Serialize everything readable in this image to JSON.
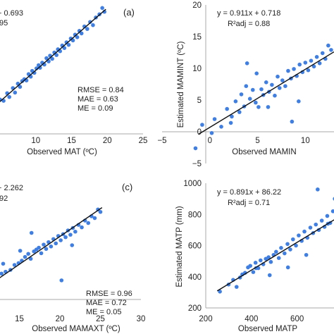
{
  "colors": {
    "points": "#3f7fe3",
    "line": "#111111",
    "axis": "#aaaaaa"
  },
  "chart_data": [
    {
      "type": "scatter",
      "panel_label": "(a)",
      "xlabel": "Observed MAT (ºC)",
      "ylabel": "",
      "xlim": [
        5,
        25
      ],
      "ylim": [
        null,
        null
      ],
      "x_ticks": [
        "10",
        "15",
        "20",
        "25"
      ],
      "y_ticks": [],
      "equation": "+ 0.693",
      "r2_label": ".95",
      "stats": [
        "RMSE = 0.84",
        "MAE = 0.63",
        "ME = 0.09"
      ],
      "fit": {
        "x": [
          4.8,
          19.8
        ],
        "y": [
          4.9,
          19.6
        ]
      },
      "points": {
        "x": [
          5.0,
          5.5,
          6.0,
          6.3,
          6.8,
          7.1,
          7.5,
          7.8,
          8.1,
          8.4,
          8.7,
          9.0,
          9.3,
          9.5,
          9.8,
          10.1,
          10.4,
          10.6,
          10.9,
          11.2,
          11.5,
          11.8,
          12.0,
          12.3,
          12.6,
          12.9,
          13.1,
          13.4,
          13.7,
          14.0,
          14.3,
          14.6,
          14.9,
          15.2,
          15.5,
          15.8,
          16.1,
          16.4,
          16.8,
          17.2,
          17.6,
          18.0,
          18.4,
          18.9,
          19.3,
          19.6
        ],
        "y": [
          5.4,
          5.2,
          6.4,
          5.8,
          7.2,
          6.5,
          7.9,
          7.4,
          8.3,
          8.6,
          8.4,
          9.4,
          9.0,
          9.9,
          9.6,
          10.3,
          10.8,
          10.4,
          11.2,
          10.9,
          11.9,
          11.4,
          12.3,
          11.8,
          12.8,
          12.4,
          13.3,
          13.0,
          13.9,
          13.5,
          14.4,
          14.0,
          15.0,
          14.7,
          15.6,
          15.2,
          16.2,
          15.8,
          16.9,
          16.5,
          17.6,
          17.1,
          18.3,
          18.8,
          19.8,
          19.2
        ]
      }
    },
    {
      "type": "scatter",
      "panel_label": "",
      "xlabel": "Observed MAMIN",
      "ylabel": "Estimated MAMINT (ºC)",
      "xlim": [
        -5,
        13
      ],
      "ylim": [
        -5,
        20
      ],
      "x_ticks": [
        "−5",
        "0",
        "5",
        "10"
      ],
      "y_ticks": [
        "20",
        "15",
        "10",
        "5",
        "0",
        "−5"
      ],
      "equation": "y = 0.911x + 0.718",
      "r2_label": "R²adj = 0.88",
      "stats": [],
      "fit": {
        "x": [
          -1.2,
          13
        ],
        "y": [
          -0.4,
          12.6
        ]
      },
      "points": {
        "x": [
          -1.5,
          -0.8,
          0.2,
          0.5,
          1.2,
          1.8,
          2.3,
          2.7,
          3.1,
          3.3,
          3.6,
          3.9,
          4.2,
          4.5,
          4.8,
          5.1,
          5.4,
          5.6,
          5.9,
          6.2,
          6.5,
          6.8,
          7.1,
          7.3,
          7.6,
          7.9,
          8.2,
          8.5,
          8.8,
          9.1,
          9.4,
          9.7,
          10.0,
          10.3,
          10.6,
          10.9,
          11.2,
          11.5,
          11.8,
          12.1,
          12.4,
          12.7,
          3.8,
          4.9,
          6.1,
          8.6,
          9.3,
          2.2
        ],
        "y": [
          -2.6,
          1.1,
          -0.2,
          2.0,
          0.8,
          3.6,
          2.4,
          4.8,
          3.1,
          5.9,
          4.0,
          10.8,
          5.2,
          6.6,
          4.6,
          3.9,
          6.7,
          5.8,
          7.8,
          6.3,
          7.4,
          5.7,
          8.7,
          6.9,
          8.1,
          7.2,
          9.6,
          8.4,
          9.9,
          8.8,
          10.6,
          9.4,
          10.9,
          9.7,
          11.2,
          10.3,
          11.8,
          10.8,
          12.4,
          11.5,
          13.6,
          12.9,
          7.2,
          9.2,
          3.9,
          1.6,
          4.8,
          1.4
        ]
      }
    },
    {
      "type": "scatter",
      "panel_label": "(c)",
      "xlabel": "Observed MAMAXT (ºC)",
      "ylabel": "",
      "xlim": [
        10,
        30
      ],
      "ylim": [
        null,
        null
      ],
      "x_ticks": [
        "15",
        "20",
        "25",
        "30"
      ],
      "y_ticks": [],
      "equation": "+ 2.262",
      "r2_label": ".92",
      "stats": [
        "RMSE = 0.96",
        "MAE = 0.72",
        "ME = 0.05"
      ],
      "fit": {
        "x": [
          10,
          25.2
        ],
        "y": [
          11.2,
          24.9
        ]
      },
      "points": {
        "x": [
          10.3,
          10.9,
          11.6,
          12.2,
          12.8,
          13.3,
          13.9,
          14.4,
          14.9,
          15.3,
          15.7,
          16.1,
          16.4,
          16.8,
          17.1,
          17.4,
          17.7,
          18.0,
          18.3,
          18.6,
          18.9,
          19.2,
          19.5,
          19.8,
          20.1,
          20.4,
          20.7,
          21.0,
          21.3,
          21.6,
          21.9,
          22.3,
          22.7,
          23.1,
          23.5,
          23.9,
          24.3,
          24.7,
          25.0,
          20.2,
          15.1,
          13.0,
          16.5,
          21.5
        ],
        "y": [
          11.5,
          12.3,
          12.9,
          13.7,
          14.2,
          14.5,
          14.8,
          15.6,
          15.9,
          16.3,
          16.9,
          17.4,
          16.6,
          17.8,
          18.1,
          18.4,
          17.5,
          18.9,
          18.2,
          19.3,
          18.6,
          19.8,
          19.1,
          20.3,
          19.6,
          20.6,
          20.1,
          21.2,
          20.5,
          21.6,
          21.0,
          22.1,
          21.7,
          22.8,
          22.4,
          23.5,
          23.2,
          24.6,
          24.2,
          13.1,
          17.9,
          15.8,
          20.8,
          18.8
        ]
      }
    },
    {
      "type": "scatter",
      "panel_label": "",
      "xlabel": "Observed MATP",
      "ylabel": "Estimated MATP (mm)",
      "xlim": [
        200,
        780
      ],
      "ylim": [
        200,
        1000
      ],
      "x_ticks": [
        "200",
        "400",
        "600"
      ],
      "y_ticks": [
        "1000",
        "800",
        "600",
        "400",
        "200"
      ],
      "equation": "y = 0.891x + 86.22",
      "r2_label": "R²adj = 0.71",
      "stats": [],
      "fit": {
        "x": [
          250,
          780
        ],
        "y": [
          308.97,
          781.2
        ]
      },
      "points": {
        "x": [
          262,
          300,
          320,
          335,
          350,
          360,
          372,
          385,
          395,
          408,
          418,
          430,
          440,
          452,
          463,
          475,
          485,
          497,
          508,
          520,
          530,
          545,
          558,
          570,
          582,
          595,
          607,
          620,
          632,
          645,
          658,
          670,
          682,
          695,
          708,
          720,
          732,
          745,
          757,
          770,
          690,
          735,
          765,
          480,
          560,
          640,
          420
        ],
        "y": [
          305,
          350,
          380,
          335,
          395,
          415,
          425,
          460,
          470,
          430,
          490,
          455,
          505,
          480,
          515,
          525,
          495,
          540,
          560,
          520,
          585,
          550,
          610,
          575,
          640,
          600,
          665,
          630,
          690,
          650,
          715,
          680,
          735,
          700,
          760,
          720,
          790,
          745,
          820,
          900,
          960,
          740,
          900,
          410,
          460,
          540,
          455
        ]
      }
    }
  ]
}
